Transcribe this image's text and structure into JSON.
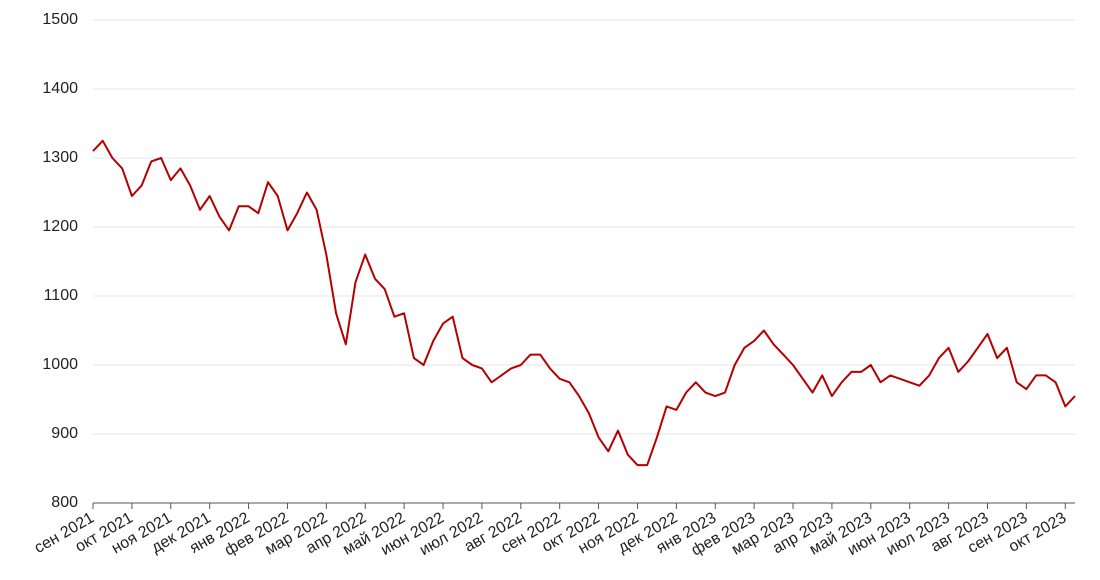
{
  "chart_data": {
    "type": "line",
    "categories": [
      "сен 2021",
      null,
      null,
      null,
      "окт 2021",
      null,
      null,
      null,
      "ноя 2021",
      null,
      null,
      null,
      "дек 2021",
      null,
      null,
      null,
      "янв 2022",
      null,
      null,
      null,
      "фев 2022",
      null,
      null,
      null,
      "мар 2022",
      null,
      null,
      null,
      "апр 2022",
      null,
      null,
      null,
      "май 2022",
      null,
      null,
      null,
      "июн 2022",
      null,
      null,
      null,
      "июл 2022",
      null,
      null,
      null,
      "авг 2022",
      null,
      null,
      null,
      "сен 2022",
      null,
      null,
      null,
      "окт 2022",
      null,
      null,
      null,
      "ноя 2022",
      null,
      null,
      null,
      "дек 2022",
      null,
      null,
      null,
      "янв 2023",
      null,
      null,
      null,
      "фев 2023",
      null,
      null,
      null,
      "мар 2023",
      null,
      null,
      null,
      "апр 2023",
      null,
      null,
      null,
      "май 2023",
      null,
      null,
      null,
      "июн 2023",
      null,
      null,
      null,
      "июл 2023",
      null,
      null,
      null,
      "авг 2023",
      null,
      null,
      null,
      "сен 2023",
      null,
      null,
      null,
      "окт 2023",
      null
    ],
    "values": [
      1310,
      1325,
      1300,
      1285,
      1245,
      1260,
      1295,
      1300,
      1268,
      1285,
      1260,
      1225,
      1245,
      1215,
      1195,
      1230,
      1230,
      1220,
      1265,
      1245,
      1195,
      1220,
      1250,
      1225,
      1160,
      1075,
      1030,
      1120,
      1160,
      1125,
      1110,
      1070,
      1075,
      1010,
      1000,
      1035,
      1060,
      1070,
      1010,
      1000,
      995,
      975,
      985,
      995,
      1000,
      1015,
      1015,
      995,
      980,
      975,
      955,
      930,
      895,
      875,
      905,
      870,
      855,
      855,
      895,
      940,
      935,
      960,
      975,
      960,
      955,
      960,
      1000,
      1025,
      1035,
      1050,
      1030,
      1015,
      1000,
      980,
      960,
      985,
      955,
      975,
      990,
      990,
      1000,
      975,
      985,
      980,
      975,
      970,
      985,
      1010,
      1025,
      990,
      1005,
      1025,
      1045,
      1010,
      1025,
      975,
      965,
      985,
      985,
      975,
      940,
      955
    ],
    "color": "#b50000",
    "ylim": [
      800,
      1500
    ],
    "yticks": [
      800,
      900,
      1000,
      1100,
      1200,
      1300,
      1400,
      1500
    ],
    "grid": true
  }
}
